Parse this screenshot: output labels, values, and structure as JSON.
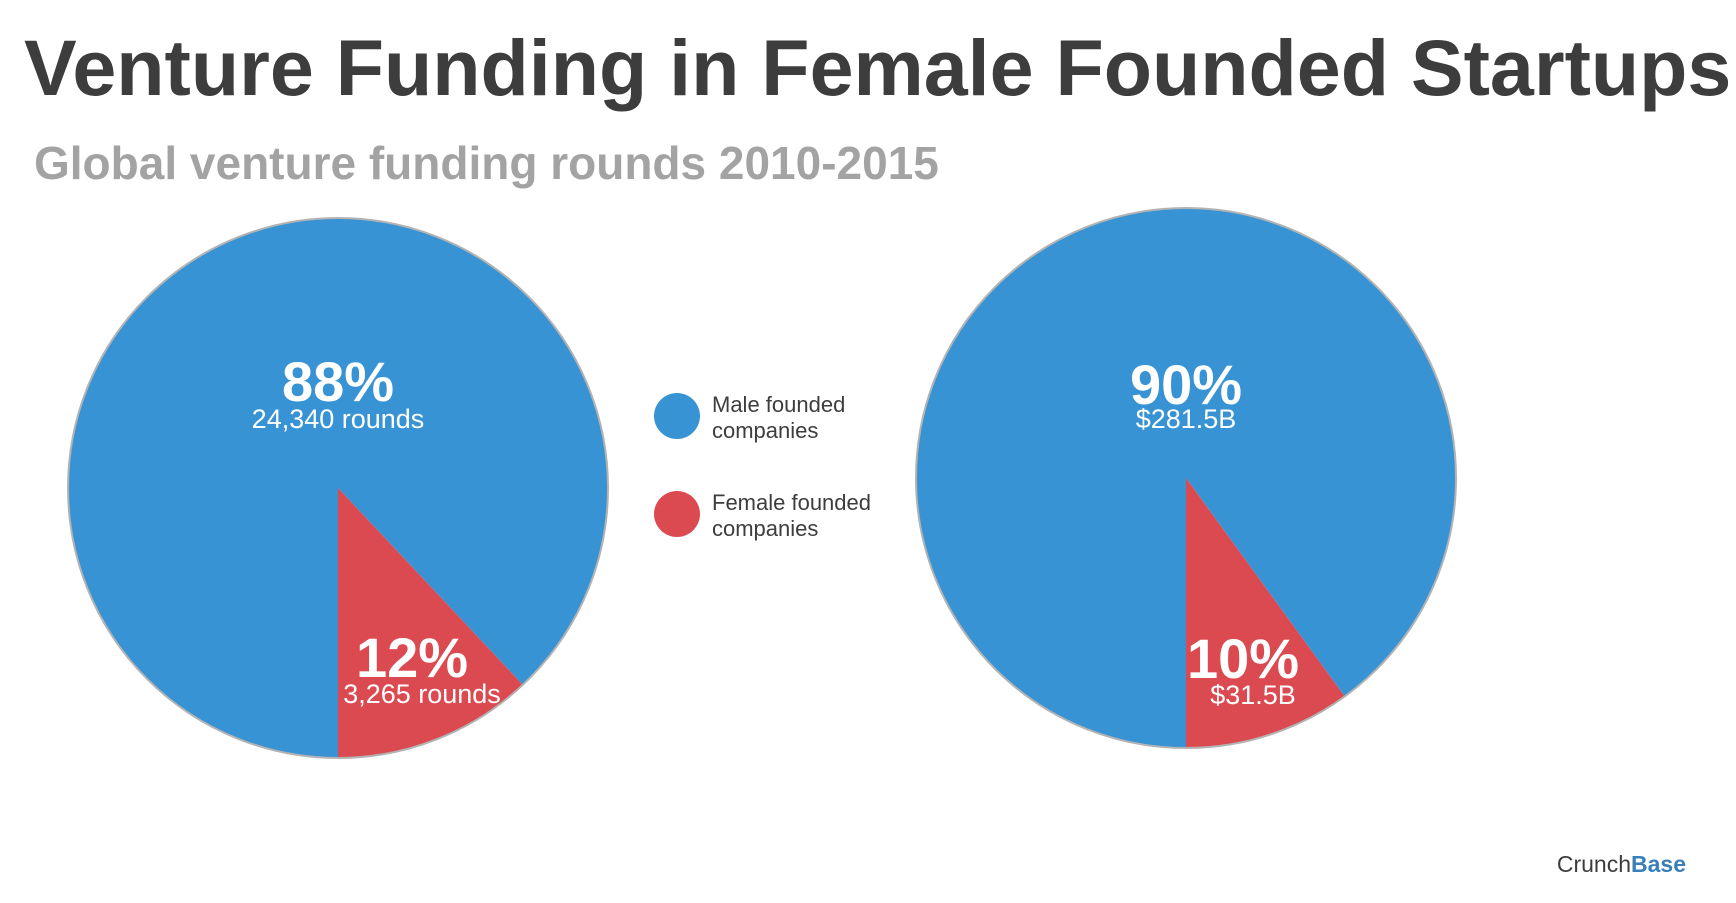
{
  "title": "Venture Funding in Female Founded Startups",
  "subtitle": "Global venture funding rounds 2010-2015",
  "colors": {
    "male": "#3893d4",
    "female": "#dc4a51",
    "outline": "#b3b3b3",
    "title": "#3d3d3d",
    "subtitle": "#a3a3a3"
  },
  "legend": [
    {
      "line1": "Male founded",
      "line2": "companies",
      "color_key": "male"
    },
    {
      "line1": "Female founded",
      "line2": "companies",
      "color_key": "female"
    }
  ],
  "chart_data": [
    {
      "type": "pie",
      "slices": [
        {
          "name": "Male founded companies",
          "value": 88,
          "percent_label": "88%",
          "detail_label": "24,340 rounds",
          "color_key": "male"
        },
        {
          "name": "Female founded companies",
          "value": 12,
          "percent_label": "12%",
          "detail_label": "3,265 rounds",
          "color_key": "female"
        }
      ]
    },
    {
      "type": "pie",
      "slices": [
        {
          "name": "Male founded companies",
          "value": 90,
          "percent_label": "90%",
          "detail_label": "$281.5B",
          "color_key": "male"
        },
        {
          "name": "Female founded companies",
          "value": 10,
          "percent_label": "10%",
          "detail_label": "$31.5B",
          "color_key": "female"
        }
      ]
    }
  ],
  "credit": {
    "part1": "Crunch",
    "part2": "Base"
  }
}
